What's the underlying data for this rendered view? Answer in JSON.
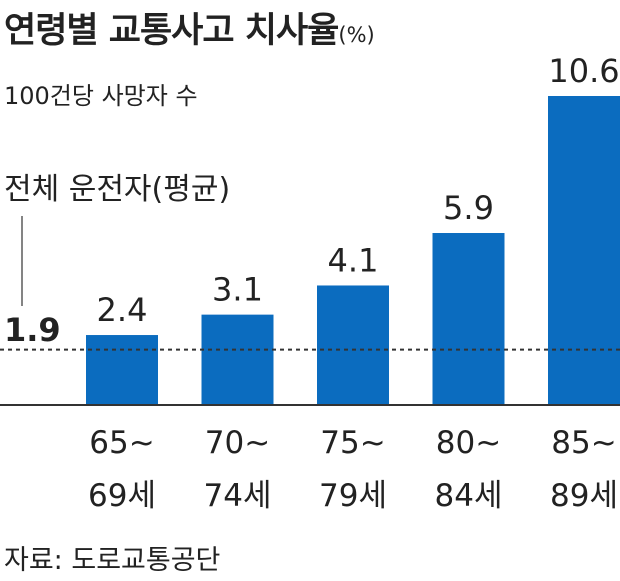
{
  "title": "연령별 교통사고 치사율",
  "title_unit": "(%)",
  "subtitle": "100건당 사망자 수",
  "reference": {
    "label": "전체 운전자(평균)",
    "value_label": "1.9",
    "value": 1.9
  },
  "source": "자료: 도로교통공단",
  "colors": {
    "bar": "#0b6cbf",
    "text": "#222222",
    "axis": "#333333"
  },
  "chart_data": {
    "type": "bar",
    "title": "연령별 교통사고 치사율(%)",
    "ylabel": "100건당 사망자 수",
    "categories": [
      {
        "line1": "65~",
        "line2": "69세"
      },
      {
        "line1": "70~",
        "line2": "74세"
      },
      {
        "line1": "75~",
        "line2": "79세"
      },
      {
        "line1": "80~",
        "line2": "84세"
      },
      {
        "line1": "85~",
        "line2": "89세"
      }
    ],
    "values": [
      2.4,
      3.1,
      4.1,
      5.9,
      10.6
    ],
    "value_labels": [
      "2.4",
      "3.1",
      "4.1",
      "5.9",
      "10.6"
    ],
    "reference_line": 1.9,
    "ylim": [
      0,
      10.6
    ],
    "grid": false,
    "legend": "none"
  }
}
